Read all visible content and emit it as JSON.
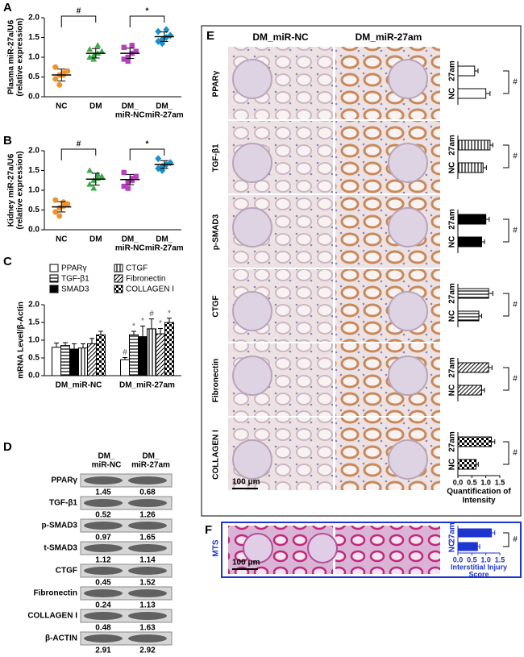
{
  "chart_data": [
    {
      "type": "scatter",
      "panel_label": "A",
      "y_label": [
        "Plasma miR-27a/U6",
        "(relative expression)"
      ],
      "categories": [
        [
          "NC"
        ],
        [
          "DM"
        ],
        [
          "DM_",
          "miR-NC"
        ],
        [
          "DM_",
          "miR-27am"
        ]
      ],
      "colors": [
        "#f0922b",
        "#3daa4a",
        "#b83fc0",
        "#1f8fc8"
      ],
      "markers": [
        "circle",
        "triangle",
        "square",
        "diamond"
      ],
      "values": [
        [
          0.45,
          0.55,
          0.6,
          0.65,
          0.75,
          0.3,
          0.55
        ],
        [
          1.0,
          1.05,
          1.1,
          1.15,
          1.2,
          0.95,
          1.3
        ],
        [
          0.95,
          1.0,
          1.1,
          1.15,
          1.25,
          0.9,
          1.3
        ],
        [
          1.4,
          1.45,
          1.5,
          1.55,
          1.65,
          1.35,
          1.7
        ]
      ],
      "means": [
        0.55,
        1.1,
        1.1,
        1.52
      ],
      "sd": [
        0.15,
        0.12,
        0.13,
        0.12
      ],
      "annotations": [
        "#",
        "*"
      ],
      "ylim": [
        0,
        2
      ],
      "yticks": [
        {
          "value": 0,
          "label": "0.0"
        },
        0.5,
        {
          "value": 1,
          "label": "1.0"
        },
        1.5,
        {
          "value": 2,
          "label": "2.0"
        }
      ]
    },
    {
      "type": "scatter",
      "panel_label": "B",
      "y_label": [
        "Kidney miR-27a/U6",
        "(relative expression)"
      ],
      "categories": [
        [
          "NC"
        ],
        [
          "DM"
        ],
        [
          "DM_",
          "miR-NC"
        ],
        [
          "DM_",
          "miR-27am"
        ]
      ],
      "colors": [
        "#f0922b",
        "#3daa4a",
        "#b83fc0",
        "#1f8fc8"
      ],
      "markers": [
        "circle",
        "triangle",
        "square",
        "diamond"
      ],
      "values": [
        [
          0.45,
          0.55,
          0.6,
          0.65,
          0.75,
          0.35,
          0.7
        ],
        [
          1.15,
          1.25,
          1.3,
          1.35,
          1.5,
          1.05,
          1.4
        ],
        [
          1.1,
          1.2,
          1.3,
          1.35,
          1.45,
          1.05,
          1.25
        ],
        [
          1.55,
          1.6,
          1.65,
          1.7,
          1.8,
          1.5,
          1.65
        ]
      ],
      "means": [
        0.58,
        1.28,
        1.27,
        1.65
      ],
      "sd": [
        0.13,
        0.15,
        0.13,
        0.1
      ],
      "annotations": [
        "#",
        "*"
      ],
      "ylim": [
        0,
        2
      ],
      "yticks": [
        {
          "value": 0,
          "label": "0.0"
        },
        0.5,
        {
          "value": 1,
          "label": "1.0"
        },
        1.5,
        {
          "value": 2,
          "label": "2.0"
        }
      ]
    },
    {
      "type": "bar",
      "panel_label": "C",
      "y_label": "mRNA Level/β-Actin",
      "categories": [
        "DM_miR-NC",
        "DM_miR-27am"
      ],
      "series": [
        {
          "name": "PPARγ",
          "pattern": "open",
          "values": [
            0.8,
            0.45
          ],
          "errors": [
            0.12,
            0.06
          ],
          "marks": [
            null,
            "#"
          ]
        },
        {
          "name": "TGF-β1",
          "pattern": "hstripe",
          "values": [
            0.85,
            1.15
          ],
          "errors": [
            0.08,
            0.1
          ],
          "marks": [
            null,
            "*"
          ]
        },
        {
          "name": "SMAD3",
          "pattern": "solid",
          "values": [
            0.75,
            1.1
          ],
          "errors": [
            0.15,
            0.3
          ],
          "marks": [
            null,
            "*"
          ]
        },
        {
          "name": "CTGF",
          "pattern": "vstripe",
          "values": [
            0.78,
            1.32
          ],
          "errors": [
            0.12,
            0.28
          ],
          "marks": [
            null,
            "#"
          ]
        },
        {
          "name": "Fibronectin",
          "pattern": "diag",
          "values": [
            0.9,
            1.18
          ],
          "errors": [
            0.15,
            0.15
          ],
          "marks": [
            null,
            "*"
          ]
        },
        {
          "name": "COLLAGEN I",
          "pattern": "checker",
          "values": [
            1.15,
            1.5
          ],
          "errors": [
            0.1,
            0.12
          ],
          "marks": [
            null,
            "*"
          ]
        }
      ],
      "ylim": [
        0,
        2
      ],
      "yticks": [
        {
          "value": 0,
          "label": "0.0"
        },
        0.5,
        {
          "value": 1,
          "label": "1.0"
        },
        1.5,
        {
          "value": 2,
          "label": "2.0"
        }
      ]
    },
    {
      "type": "hbar",
      "row_label": "PPARγ",
      "categories": [
        "27am",
        "NC"
      ],
      "values": [
        0.6,
        1.0
      ],
      "errors": [
        0.12,
        0.15
      ],
      "annotation": "#",
      "pattern": "open",
      "xlim": [
        0,
        1.5
      ]
    },
    {
      "type": "hbar",
      "row_label": "TGF-β1",
      "categories": [
        "27am",
        "NC"
      ],
      "values": [
        1.15,
        0.9
      ],
      "errors": [
        0.1,
        0.12
      ],
      "annotation": "#",
      "pattern": "vstripe",
      "xlim": [
        0,
        1.5
      ]
    },
    {
      "type": "hbar",
      "row_label": "p-SMAD3",
      "categories": [
        "27am",
        "NC"
      ],
      "values": [
        1.0,
        0.85
      ],
      "errors": [
        0.12,
        0.1
      ],
      "annotation": "#",
      "pattern": "solid",
      "xlim": [
        0,
        1.5
      ]
    },
    {
      "type": "hbar",
      "row_label": "CTGF",
      "categories": [
        "27am",
        "NC"
      ],
      "values": [
        1.1,
        0.75
      ],
      "errors": [
        0.15,
        0.1
      ],
      "annotation": "#",
      "pattern": "hstripe",
      "xlim": [
        0,
        1.5
      ]
    },
    {
      "type": "hbar",
      "row_label": "Fibronectin",
      "categories": [
        "27am",
        "NC"
      ],
      "values": [
        1.1,
        0.85
      ],
      "errors": [
        0.12,
        0.1
      ],
      "annotation": "#",
      "pattern": "diag",
      "xlim": [
        0,
        1.5
      ]
    },
    {
      "type": "hbar",
      "row_label": "COLLAGEN I",
      "categories": [
        "27am",
        "NC"
      ],
      "values": [
        1.2,
        0.65
      ],
      "errors": [
        0.12,
        0.08
      ],
      "annotation": "#",
      "pattern": "checker",
      "xlim": [
        0,
        1.5
      ],
      "xticks": [
        {
          "value": 0,
          "label": "0.0"
        },
        0.5,
        {
          "value": 1,
          "label": "1.0"
        },
        1.5
      ],
      "x_label": [
        "Quantification of",
        "Intensity"
      ]
    },
    {
      "type": "hbar",
      "panel_label": "F",
      "row_label": "MTS",
      "categories": [
        "27am",
        "NC"
      ],
      "values": [
        1.2,
        0.7
      ],
      "errors": [
        0.12,
        0.08
      ],
      "annotation": "#",
      "color": "#1f35d0",
      "xlim": [
        0,
        1.5
      ],
      "xticks": [
        {
          "value": 0,
          "label": "0.0"
        },
        0.5,
        {
          "value": 1,
          "label": "1.0"
        },
        1.5
      ],
      "x_label": [
        "Interstitial Injury",
        "Score"
      ],
      "scale_bar": "100 μm"
    }
  ],
  "panel_d": {
    "label": "D",
    "columns": [
      [
        "DM_",
        "miR-NC"
      ],
      [
        "DM_",
        "miR-27am"
      ]
    ],
    "rows": [
      {
        "name": "PPARγ",
        "values": [
          1.45,
          0.68
        ]
      },
      {
        "name": "TGF-β1",
        "values": [
          0.52,
          1.26
        ]
      },
      {
        "name": "p-SMAD3",
        "values": [
          0.97,
          1.65
        ]
      },
      {
        "name": "t-SMAD3",
        "values": [
          1.12,
          1.14
        ]
      },
      {
        "name": "CTGF",
        "values": [
          0.45,
          1.52
        ]
      },
      {
        "name": "Fibronectin",
        "values": [
          0.24,
          1.13
        ]
      },
      {
        "name": "COLLAGEN I",
        "values": [
          0.48,
          1.63
        ]
      },
      {
        "name": "β-ACTIN",
        "values": [
          2.91,
          2.92
        ]
      }
    ]
  },
  "panel_e": {
    "label": "E",
    "columns": [
      "DM_miR-NC",
      "DM_miR-27am"
    ],
    "scale_bar": "100 μm"
  }
}
